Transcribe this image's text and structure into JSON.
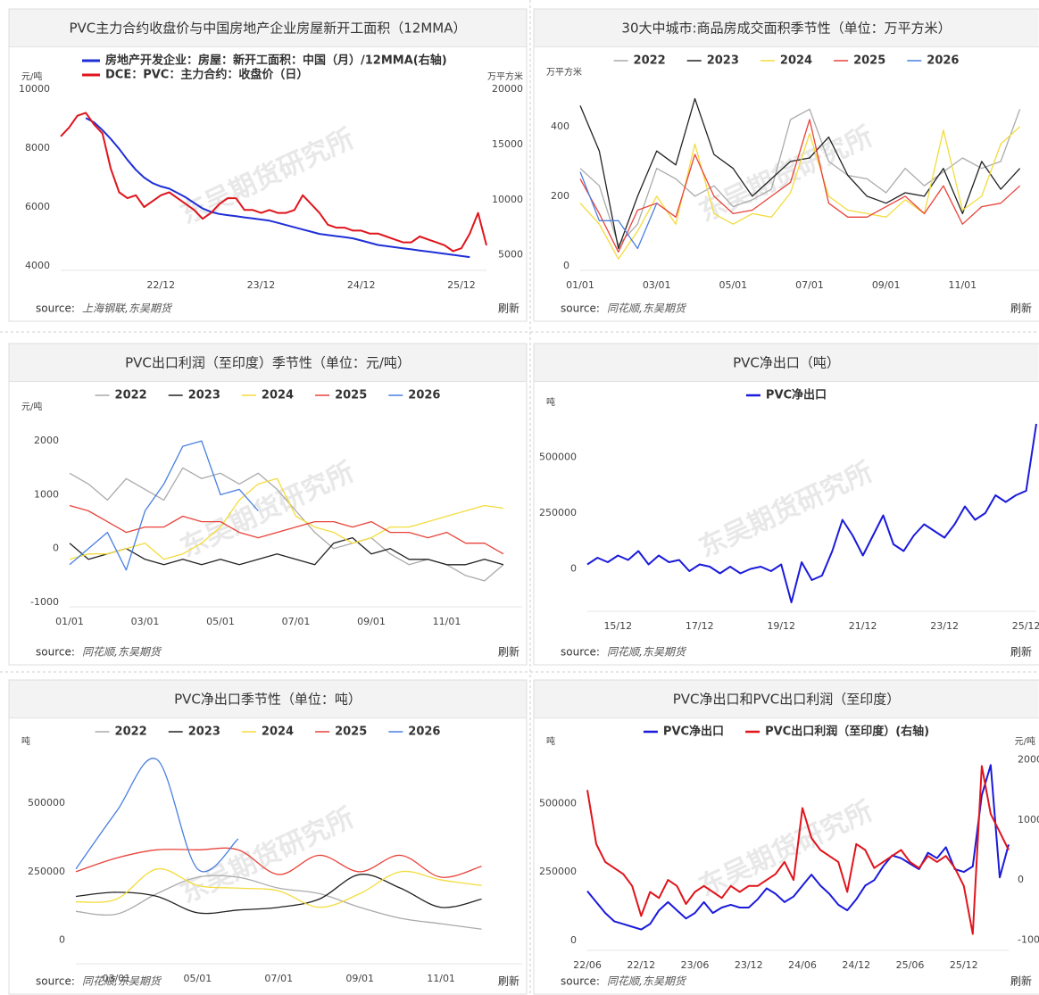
{
  "watermark": "东吴期货研究所",
  "source_label": "source:",
  "refresh": "刷新",
  "chart_data": [
    {
      "type": "line",
      "title": "PVC主力合约收盘价与中国房地产企业房屋新开工面积（12MMA）",
      "source": "上海钢联,东吴期货",
      "ylabel": "元/吨",
      "y2label": "万平方米",
      "legend": "top-left",
      "x": [
        "21/12",
        "22/01",
        "22/02",
        "22/03",
        "22/04",
        "22/05",
        "22/06",
        "22/07",
        "22/08",
        "22/09",
        "22/10",
        "22/11",
        "22/12",
        "23/01",
        "23/02",
        "23/03",
        "23/04",
        "23/05",
        "23/06",
        "23/07",
        "23/08",
        "23/09",
        "23/10",
        "23/11",
        "23/12",
        "24/01",
        "24/02",
        "24/03",
        "24/04",
        "24/05",
        "24/06",
        "24/07",
        "24/08",
        "24/09",
        "24/10",
        "24/11",
        "24/12",
        "25/01",
        "25/02",
        "25/03",
        "25/04",
        "25/05",
        "25/06",
        "25/07",
        "25/08",
        "25/09",
        "25/10",
        "25/11",
        "25/12",
        "26/01",
        "26/02",
        "26/03"
      ],
      "xticks": [
        "22/12",
        "23/12",
        "24/12",
        "25/12"
      ],
      "ylim": [
        4000,
        10000
      ],
      "yticks": [
        4000,
        6000,
        8000,
        10000
      ],
      "y2lim": [
        4000,
        20000
      ],
      "y2ticks": [
        5000,
        10000,
        15000,
        20000
      ],
      "series": [
        {
          "name": "房地产开发企业：房屋：新开工面积：中国（月）/12MMA(右轴)",
          "color": "#1f2fd6",
          "axis": "y2",
          "values": [
            null,
            null,
            null,
            17400,
            17000,
            16300,
            15500,
            14600,
            13600,
            12700,
            12000,
            11500,
            11200,
            11000,
            10600,
            10200,
            9700,
            9200,
            8900,
            8700,
            8600,
            8500,
            8400,
            8300,
            8200,
            8100,
            7900,
            7700,
            7500,
            7300,
            7100,
            6900,
            6800,
            6700,
            6600,
            6500,
            6300,
            6100,
            5900,
            5800,
            5700,
            5600,
            5500,
            5400,
            5300,
            5200,
            5100,
            5000,
            4900,
            4800,
            null,
            null
          ]
        },
        {
          "name": "DCE：PVC：主力合约：收盘价（日）",
          "color": "#e0141c",
          "values": [
            8400,
            8700,
            9100,
            9200,
            8800,
            8500,
            7300,
            6500,
            6300,
            6400,
            6000,
            6200,
            6400,
            6500,
            6300,
            6100,
            5900,
            5600,
            5800,
            6100,
            6300,
            6300,
            5900,
            5900,
            5800,
            5900,
            5800,
            5800,
            5900,
            6400,
            6100,
            5800,
            5400,
            5300,
            5300,
            5200,
            5200,
            5100,
            5100,
            5000,
            4900,
            4800,
            4800,
            5000,
            4900,
            4800,
            4700,
            4500,
            4600,
            5100,
            5800,
            4700
          ]
        }
      ]
    },
    {
      "type": "line",
      "title": "30大中城市:商品房成交面积季节性（单位：万平方米）",
      "source": "同花顺,东吴期货",
      "ylabel": "万平方米",
      "legend": "top",
      "x": [
        "01/01",
        "01/16",
        "02/01",
        "02/16",
        "03/01",
        "03/16",
        "04/01",
        "04/16",
        "05/01",
        "05/16",
        "06/01",
        "06/16",
        "07/01",
        "07/16",
        "08/01",
        "08/16",
        "09/01",
        "09/16",
        "10/01",
        "10/16",
        "11/01",
        "11/16",
        "12/01",
        "12/16"
      ],
      "xticks": [
        "01/01",
        "03/01",
        "05/01",
        "07/01",
        "09/01",
        "11/01"
      ],
      "ylim": [
        0,
        520
      ],
      "yticks": [
        0,
        200,
        400
      ],
      "series": [
        {
          "name": "2022",
          "color": "#aaaaaa",
          "values": [
            280,
            230,
            60,
            120,
            280,
            250,
            200,
            230,
            170,
            190,
            220,
            420,
            450,
            300,
            260,
            250,
            210,
            280,
            230,
            270,
            310,
            280,
            300,
            450
          ]
        },
        {
          "name": "2023",
          "color": "#222222",
          "values": [
            460,
            330,
            50,
            200,
            330,
            290,
            480,
            320,
            280,
            200,
            250,
            300,
            310,
            370,
            260,
            200,
            180,
            210,
            200,
            280,
            150,
            300,
            220,
            280
          ]
        },
        {
          "name": "2024",
          "color": "#f3dc3c",
          "values": [
            180,
            120,
            20,
            100,
            200,
            120,
            350,
            150,
            120,
            150,
            140,
            210,
            380,
            200,
            160,
            150,
            140,
            190,
            150,
            390,
            160,
            200,
            350,
            400
          ]
        },
        {
          "name": "2025",
          "color": "#e8433a",
          "values": [
            250,
            150,
            40,
            160,
            180,
            140,
            320,
            200,
            150,
            160,
            200,
            240,
            420,
            180,
            140,
            140,
            170,
            200,
            150,
            230,
            120,
            170,
            180,
            230
          ]
        },
        {
          "name": "2026",
          "color": "#4a7fe0",
          "values": [
            270,
            130,
            130,
            50,
            180,
            null,
            null,
            null,
            null,
            null,
            null,
            null,
            null,
            null,
            null,
            null,
            null,
            null,
            null,
            null,
            null,
            null,
            null,
            null
          ]
        }
      ]
    },
    {
      "type": "line",
      "title": "PVC出口利润（至印度）季节性（单位：元/吨）",
      "source": "同花顺,东吴期货",
      "ylabel": "元/吨",
      "legend": "top",
      "x": [
        "01/01",
        "01/16",
        "02/01",
        "02/16",
        "03/01",
        "03/16",
        "04/01",
        "04/16",
        "05/01",
        "05/16",
        "06/01",
        "06/16",
        "07/01",
        "07/16",
        "08/01",
        "08/16",
        "09/01",
        "09/16",
        "10/01",
        "10/16",
        "11/01",
        "11/16",
        "12/01",
        "12/16"
      ],
      "xticks": [
        "01/01",
        "03/01",
        "05/01",
        "07/01",
        "09/01",
        "11/01"
      ],
      "ylim": [
        -1000,
        2400
      ],
      "yticks": [
        -1000,
        0,
        1000,
        2000
      ],
      "series": [
        {
          "name": "2022",
          "color": "#aaaaaa",
          "values": [
            1400,
            1200,
            900,
            1300,
            1100,
            900,
            1500,
            1300,
            1400,
            1200,
            1400,
            1100,
            700,
            300,
            0,
            100,
            200,
            -100,
            -300,
            -200,
            -300,
            -500,
            -600,
            -300
          ]
        },
        {
          "name": "2023",
          "color": "#222222",
          "values": [
            100,
            -200,
            -100,
            0,
            -200,
            -300,
            -200,
            -300,
            -200,
            -300,
            -200,
            -100,
            -200,
            -300,
            100,
            200,
            -100,
            0,
            -200,
            -200,
            -300,
            -300,
            -200,
            -300
          ]
        },
        {
          "name": "2024",
          "color": "#f3dc3c",
          "values": [
            -200,
            -100,
            -100,
            0,
            100,
            -200,
            -100,
            100,
            400,
            900,
            1200,
            1300,
            600,
            400,
            300,
            100,
            200,
            400,
            400,
            500,
            600,
            700,
            800,
            750
          ]
        },
        {
          "name": "2025",
          "color": "#e8433a",
          "values": [
            800,
            700,
            500,
            300,
            400,
            400,
            600,
            500,
            500,
            300,
            200,
            300,
            400,
            500,
            500,
            400,
            500,
            300,
            300,
            200,
            300,
            100,
            100,
            -100
          ]
        },
        {
          "name": "2026",
          "color": "#4a7fe0",
          "values": [
            -300,
            0,
            300,
            -400,
            700,
            1200,
            1900,
            2000,
            1000,
            1100,
            700,
            null,
            null,
            null,
            null,
            null,
            null,
            null,
            null,
            null,
            null,
            null,
            null,
            null
          ]
        }
      ]
    },
    {
      "type": "line",
      "title": "PVC净出口（吨）",
      "source": "同花顺,东吴期货",
      "ylabel": "吨",
      "legend": "top",
      "x": [
        "15/03",
        "15/06",
        "15/09",
        "15/12",
        "16/03",
        "16/06",
        "16/09",
        "16/12",
        "17/03",
        "17/06",
        "17/09",
        "17/12",
        "18/03",
        "18/06",
        "18/09",
        "18/12",
        "19/03",
        "19/06",
        "19/09",
        "19/12",
        "20/03",
        "20/06",
        "20/09",
        "20/12",
        "21/03",
        "21/06",
        "21/09",
        "21/12",
        "22/03",
        "22/06",
        "22/09",
        "22/12",
        "23/03",
        "23/06",
        "23/09",
        "23/12",
        "24/03",
        "24/06",
        "24/09",
        "24/12",
        "25/03",
        "25/06",
        "25/09",
        "25/12",
        "26/03"
      ],
      "xticks": [
        "15/12",
        "17/12",
        "19/12",
        "21/12",
        "23/12",
        "25/12"
      ],
      "ylim": [
        -170000,
        690000
      ],
      "yticks": [
        0,
        250000,
        500000
      ],
      "series": [
        {
          "name": "PVC净出口",
          "color": "#1a1adb",
          "values": [
            20000,
            50000,
            30000,
            60000,
            40000,
            80000,
            20000,
            60000,
            30000,
            40000,
            -10000,
            20000,
            10000,
            -20000,
            10000,
            -20000,
            0,
            10000,
            -10000,
            20000,
            -150000,
            30000,
            -50000,
            -30000,
            80000,
            220000,
            150000,
            60000,
            150000,
            240000,
            110000,
            80000,
            150000,
            200000,
            170000,
            140000,
            200000,
            280000,
            220000,
            250000,
            330000,
            300000,
            330000,
            350000,
            650000
          ]
        }
      ]
    },
    {
      "type": "line",
      "title": "PVC净出口季节性（单位：吨）",
      "smooth": true,
      "source": "同花顺,东吴期货",
      "ylabel": "吨",
      "legend": "top",
      "x": [
        "02/01",
        "03/01",
        "04/01",
        "05/01",
        "06/01",
        "07/01",
        "08/01",
        "09/01",
        "10/01",
        "11/01",
        "12/01"
      ],
      "xticks": [
        "03/01",
        "05/01",
        "07/01",
        "09/01",
        "11/01"
      ],
      "ylim": [
        -70000,
        680000
      ],
      "yticks": [
        0,
        250000,
        500000
      ],
      "series": [
        {
          "name": "2022",
          "color": "#aaaaaa",
          "values": [
            105000,
            95000,
            170000,
            230000,
            230000,
            190000,
            170000,
            120000,
            80000,
            60000,
            40000
          ]
        },
        {
          "name": "2023",
          "color": "#222222",
          "values": [
            160000,
            175000,
            160000,
            100000,
            110000,
            120000,
            150000,
            240000,
            190000,
            120000,
            150000
          ]
        },
        {
          "name": "2024",
          "color": "#f3dc3c",
          "values": [
            140000,
            150000,
            260000,
            200000,
            190000,
            180000,
            120000,
            170000,
            250000,
            220000,
            200000
          ]
        },
        {
          "name": "2025",
          "color": "#e8433a",
          "values": [
            250000,
            300000,
            330000,
            330000,
            330000,
            240000,
            310000,
            250000,
            310000,
            230000,
            270000
          ]
        },
        {
          "name": "2026",
          "color": "#4a7fe0",
          "values": [
            260000,
            470000,
            660000,
            260000,
            370000,
            null,
            null,
            null,
            null,
            null,
            null
          ]
        }
      ]
    },
    {
      "type": "line",
      "title": "PVC净出口和PVC出口利润（至印度）",
      "source": "同花顺,东吴期货",
      "ylabel": "吨",
      "y2label": "元/吨",
      "legend": "top",
      "x": [
        "22/06",
        "22/07",
        "22/08",
        "22/09",
        "22/10",
        "22/11",
        "22/12",
        "23/01",
        "23/02",
        "23/03",
        "23/04",
        "23/05",
        "23/06",
        "23/07",
        "23/08",
        "23/09",
        "23/10",
        "23/11",
        "23/12",
        "24/01",
        "24/02",
        "24/03",
        "24/04",
        "24/05",
        "24/06",
        "24/07",
        "24/08",
        "24/09",
        "24/10",
        "24/11",
        "24/12",
        "25/01",
        "25/02",
        "25/03",
        "25/04",
        "25/05",
        "25/06",
        "25/07",
        "25/08",
        "25/09",
        "25/10",
        "25/11",
        "25/12",
        "26/01",
        "26/02",
        "26/03",
        "26/04",
        "26/05"
      ],
      "xticks": [
        "22/06",
        "22/12",
        "23/06",
        "23/12",
        "24/06",
        "24/12",
        "25/06",
        "25/12"
      ],
      "ylim": [
        -20000,
        680000
      ],
      "yticks": [
        0,
        250000,
        500000
      ],
      "y2lim": [
        -1100,
        2100
      ],
      "y2ticks": [
        -1000,
        0,
        1000,
        2000
      ],
      "series": [
        {
          "name": "PVC净出口",
          "color": "#1a1adb",
          "values": [
            180000,
            140000,
            100000,
            70000,
            60000,
            50000,
            40000,
            60000,
            110000,
            140000,
            110000,
            80000,
            100000,
            140000,
            100000,
            120000,
            130000,
            120000,
            120000,
            150000,
            190000,
            170000,
            140000,
            160000,
            200000,
            240000,
            200000,
            170000,
            130000,
            110000,
            150000,
            200000,
            220000,
            270000,
            310000,
            300000,
            280000,
            260000,
            320000,
            300000,
            340000,
            260000,
            250000,
            270000,
            530000,
            640000,
            230000,
            350000
          ]
        },
        {
          "name": "PVC出口利润（至印度）(右轴)",
          "color": "#e0141c",
          "axis": "y2",
          "values": [
            1500,
            600,
            300,
            200,
            100,
            -100,
            -600,
            -200,
            -300,
            0,
            -100,
            -400,
            -200,
            -100,
            -200,
            -300,
            -100,
            -200,
            -100,
            -100,
            0,
            100,
            300,
            0,
            1200,
            700,
            500,
            400,
            300,
            -200,
            600,
            500,
            200,
            300,
            400,
            500,
            300,
            200,
            400,
            300,
            400,
            200,
            -100,
            -900,
            1900,
            1100,
            800,
            500
          ]
        }
      ]
    }
  ]
}
